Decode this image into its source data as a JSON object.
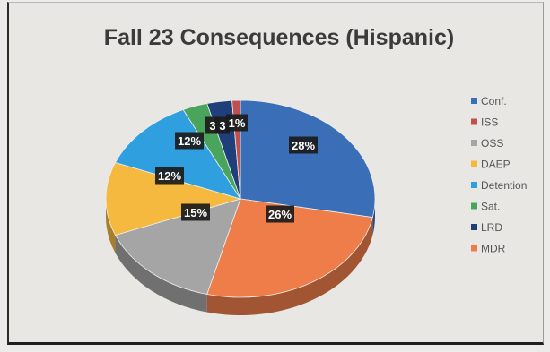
{
  "chart_data": {
    "type": "pie",
    "title": "Fall 23 Consequences (Hispanic)",
    "legend_position": "right",
    "slices": [
      {
        "name": "Conf.",
        "value": 28,
        "label": "28%",
        "color": "#3a6fb8"
      },
      {
        "name": "ISS",
        "value": 1,
        "label": "1%",
        "color": "#c0504d"
      },
      {
        "name": "OSS",
        "value": 15,
        "label": "15%",
        "color": "#a5a5a5"
      },
      {
        "name": "DAEP",
        "value": 12,
        "label": "12%",
        "color": "#f5b940"
      },
      {
        "name": "Detention",
        "value": 12,
        "label": "12%",
        "color": "#2f9fe0"
      },
      {
        "name": "Sat.",
        "value": 3,
        "label": "3",
        "color": "#4aa55c"
      },
      {
        "name": "LRD",
        "value": 3,
        "label": "3",
        "color": "#1f3f7a"
      },
      {
        "name": "MDR",
        "value": 26,
        "label": "26%",
        "color": "#ee7d4a"
      }
    ],
    "draw_order": [
      "Conf.",
      "MDR",
      "OSS",
      "DAEP",
      "Detention",
      "Sat.",
      "LRD",
      "ISS"
    ]
  }
}
